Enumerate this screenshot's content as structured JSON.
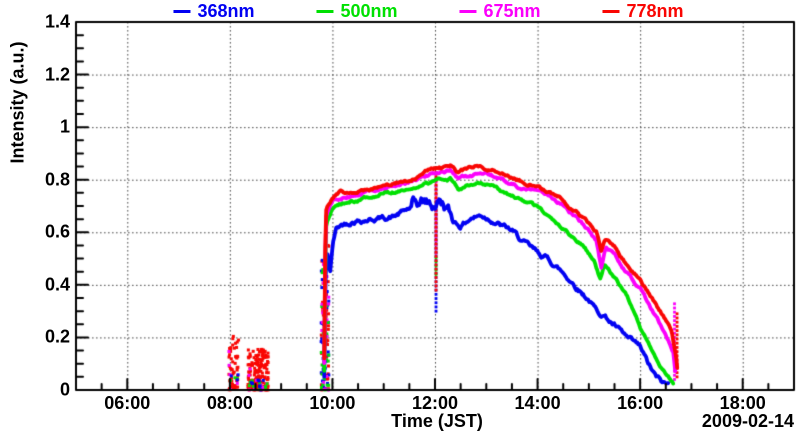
{
  "legend": {
    "entries": [
      {
        "label": "368nm",
        "color": "#0202f2"
      },
      {
        "label": "500nm",
        "color": "#00e002"
      },
      {
        "label": "675nm",
        "color": "#fb00fb"
      },
      {
        "label": "778nm",
        "color": "#f90603"
      }
    ]
  },
  "chart_data": {
    "type": "line",
    "title": "",
    "xlabel": "Time (JST)",
    "ylabel": "Intensity (a.u.)",
    "date_label": "2009-02-14",
    "xlim_hours": [
      5,
      19
    ],
    "ylim": [
      0,
      1.4
    ],
    "grid": "dotted",
    "legend_position": "top",
    "x_major_ticks_hours": [
      6,
      8,
      10,
      12,
      14,
      16,
      18
    ],
    "x_major_tick_labels": [
      "06:00",
      "08:00",
      "10:00",
      "12:00",
      "14:00",
      "16:00",
      "18:00"
    ],
    "x_minor_step_hours": 0.5,
    "y_major_ticks": [
      0,
      0.2,
      0.4,
      0.6,
      0.8,
      1.0,
      1.2,
      1.4
    ],
    "y_major_tick_labels": [
      "0",
      "0.2",
      "0.4",
      "0.6",
      "0.8",
      "1",
      "1.2",
      "1.4"
    ],
    "y_minor_step": 0.05,
    "series": [
      {
        "name": "368nm",
        "color": "#0202f2",
        "noise": 0.012,
        "points": [
          [
            9.84,
            0.05
          ],
          [
            9.86,
            0.35
          ],
          [
            9.88,
            0.52
          ],
          [
            9.92,
            0.5
          ],
          [
            9.95,
            0.44
          ],
          [
            9.98,
            0.5
          ],
          [
            10.02,
            0.57
          ],
          [
            10.08,
            0.615
          ],
          [
            10.2,
            0.63
          ],
          [
            10.4,
            0.645
          ],
          [
            10.7,
            0.65
          ],
          [
            11.0,
            0.655
          ],
          [
            11.2,
            0.66
          ],
          [
            11.45,
            0.685
          ],
          [
            11.8,
            0.715
          ],
          [
            11.95,
            0.7
          ],
          [
            12.1,
            0.72
          ],
          [
            12.2,
            0.7
          ],
          [
            12.35,
            0.645
          ],
          [
            12.5,
            0.625
          ],
          [
            12.7,
            0.655
          ],
          [
            12.9,
            0.665
          ],
          [
            13.1,
            0.65
          ],
          [
            13.3,
            0.625
          ],
          [
            13.5,
            0.605
          ],
          [
            13.7,
            0.565
          ],
          [
            14.0,
            0.52
          ],
          [
            14.2,
            0.5
          ],
          [
            14.5,
            0.445
          ],
          [
            14.8,
            0.385
          ],
          [
            15.0,
            0.345
          ],
          [
            15.15,
            0.3
          ],
          [
            15.3,
            0.285
          ],
          [
            15.5,
            0.245
          ],
          [
            15.75,
            0.195
          ],
          [
            16.0,
            0.16
          ],
          [
            16.15,
            0.1
          ],
          [
            16.3,
            0.05
          ],
          [
            16.45,
            0.025
          ],
          [
            16.55,
            0.02
          ]
        ]
      },
      {
        "name": "500nm",
        "color": "#00e002",
        "noise": 0.007,
        "points": [
          [
            9.84,
            0.07
          ],
          [
            9.86,
            0.45
          ],
          [
            9.88,
            0.63
          ],
          [
            9.95,
            0.665
          ],
          [
            10.0,
            0.69
          ],
          [
            10.1,
            0.7
          ],
          [
            10.3,
            0.715
          ],
          [
            10.5,
            0.725
          ],
          [
            10.8,
            0.74
          ],
          [
            11.0,
            0.745
          ],
          [
            11.3,
            0.76
          ],
          [
            11.6,
            0.77
          ],
          [
            11.9,
            0.79
          ],
          [
            12.1,
            0.8
          ],
          [
            12.3,
            0.805
          ],
          [
            12.45,
            0.765
          ],
          [
            12.6,
            0.775
          ],
          [
            12.85,
            0.785
          ],
          [
            13.1,
            0.775
          ],
          [
            13.35,
            0.75
          ],
          [
            13.6,
            0.73
          ],
          [
            13.8,
            0.715
          ],
          [
            14.0,
            0.695
          ],
          [
            14.3,
            0.65
          ],
          [
            14.6,
            0.595
          ],
          [
            14.9,
            0.545
          ],
          [
            15.1,
            0.5
          ],
          [
            15.22,
            0.42
          ],
          [
            15.3,
            0.475
          ],
          [
            15.45,
            0.44
          ],
          [
            15.6,
            0.4
          ],
          [
            15.8,
            0.335
          ],
          [
            16.0,
            0.235
          ],
          [
            16.2,
            0.165
          ],
          [
            16.4,
            0.085
          ],
          [
            16.55,
            0.05
          ],
          [
            16.65,
            0.025
          ]
        ]
      },
      {
        "name": "675nm",
        "color": "#fb00fb",
        "noise": 0.007,
        "points": [
          [
            9.84,
            0.1
          ],
          [
            9.86,
            0.5
          ],
          [
            9.88,
            0.665
          ],
          [
            9.95,
            0.69
          ],
          [
            10.0,
            0.715
          ],
          [
            10.2,
            0.73
          ],
          [
            10.5,
            0.745
          ],
          [
            10.8,
            0.758
          ],
          [
            11.0,
            0.765
          ],
          [
            11.3,
            0.78
          ],
          [
            11.6,
            0.795
          ],
          [
            11.9,
            0.818
          ],
          [
            12.1,
            0.825
          ],
          [
            12.3,
            0.84
          ],
          [
            12.45,
            0.805
          ],
          [
            12.6,
            0.815
          ],
          [
            12.85,
            0.82
          ],
          [
            13.1,
            0.815
          ],
          [
            13.35,
            0.795
          ],
          [
            13.6,
            0.775
          ],
          [
            13.85,
            0.762
          ],
          [
            14.1,
            0.748
          ],
          [
            14.4,
            0.715
          ],
          [
            14.7,
            0.665
          ],
          [
            15.0,
            0.605
          ],
          [
            15.15,
            0.565
          ],
          [
            15.24,
            0.465
          ],
          [
            15.33,
            0.545
          ],
          [
            15.5,
            0.515
          ],
          [
            15.7,
            0.455
          ],
          [
            16.0,
            0.385
          ],
          [
            16.2,
            0.31
          ],
          [
            16.4,
            0.245
          ],
          [
            16.55,
            0.185
          ],
          [
            16.65,
            0.14
          ],
          [
            16.7,
            0.035
          ]
        ]
      },
      {
        "name": "778nm",
        "color": "#f90603",
        "noise": 0.007,
        "points": [
          [
            9.84,
            0.12
          ],
          [
            9.86,
            0.55
          ],
          [
            9.88,
            0.69
          ],
          [
            9.95,
            0.715
          ],
          [
            10.0,
            0.73
          ],
          [
            10.15,
            0.755
          ],
          [
            10.3,
            0.745
          ],
          [
            10.5,
            0.758
          ],
          [
            10.8,
            0.768
          ],
          [
            11.0,
            0.775
          ],
          [
            11.3,
            0.79
          ],
          [
            11.6,
            0.805
          ],
          [
            11.9,
            0.84
          ],
          [
            12.1,
            0.845
          ],
          [
            12.3,
            0.858
          ],
          [
            12.45,
            0.828
          ],
          [
            12.6,
            0.838
          ],
          [
            12.85,
            0.852
          ],
          [
            13.1,
            0.84
          ],
          [
            13.35,
            0.818
          ],
          [
            13.6,
            0.8
          ],
          [
            13.85,
            0.785
          ],
          [
            14.1,
            0.768
          ],
          [
            14.4,
            0.735
          ],
          [
            14.7,
            0.685
          ],
          [
            15.0,
            0.63
          ],
          [
            15.15,
            0.6
          ],
          [
            15.24,
            0.53
          ],
          [
            15.33,
            0.575
          ],
          [
            15.5,
            0.545
          ],
          [
            15.7,
            0.49
          ],
          [
            16.0,
            0.42
          ],
          [
            16.2,
            0.355
          ],
          [
            16.35,
            0.31
          ],
          [
            16.5,
            0.27
          ],
          [
            16.62,
            0.22
          ],
          [
            16.7,
            0.13
          ],
          [
            16.74,
            0.05
          ]
        ]
      }
    ],
    "scatter_clusters": [
      {
        "t0": 7.98,
        "t1": 8.17,
        "groups": [
          {
            "color": "#f90603",
            "n": 55,
            "v0": 0,
            "v1": 0.215
          },
          {
            "color": "#fb00fb",
            "n": 5,
            "v0": 0,
            "v1": 0.21
          },
          {
            "color": "#00e002",
            "n": 3,
            "v0": 0,
            "v1": 0.05
          },
          {
            "color": "#0202f2",
            "n": 3,
            "v0": 0,
            "v1": 0.07
          }
        ]
      },
      {
        "t0": 8.35,
        "t1": 8.75,
        "groups": [
          {
            "color": "#f90603",
            "n": 175,
            "v0": 0,
            "v1": 0.155
          },
          {
            "color": "#fb00fb",
            "n": 10,
            "v0": 0,
            "v1": 0.12
          },
          {
            "color": "#00e002",
            "n": 10,
            "v0": 0,
            "v1": 0.04
          },
          {
            "color": "#0202f2",
            "n": 8,
            "v0": 0,
            "v1": 0.05
          }
        ]
      },
      {
        "t0": 9.78,
        "t1": 9.93,
        "groups": [
          {
            "color": "#f90603",
            "n": 45,
            "v0": 0,
            "v1": 0.56
          },
          {
            "color": "#0202f2",
            "n": 35,
            "v0": 0,
            "v1": 0.52
          },
          {
            "color": "#00e002",
            "n": 28,
            "v0": 0,
            "v1": 0.5
          },
          {
            "color": "#fb00fb",
            "n": 22,
            "v0": 0,
            "v1": 0.52
          }
        ]
      }
    ],
    "gap_columns": [
      {
        "t": 12.02,
        "color": "#0202f2",
        "v0": 0.3,
        "v1": 0.72
      },
      {
        "t": 12.02,
        "color": "#00e002",
        "v0": 0.44,
        "v1": 0.79
      },
      {
        "t": 12.02,
        "color": "#fb00fb",
        "v0": 0.52,
        "v1": 0.83
      },
      {
        "t": 12.02,
        "color": "#f90603",
        "v0": 0.38,
        "v1": 0.85
      },
      {
        "t": 16.67,
        "color": "#fb00fb",
        "v0": 0.04,
        "v1": 0.34
      },
      {
        "t": 16.72,
        "color": "#f90603",
        "v0": 0.05,
        "v1": 0.3
      }
    ]
  }
}
